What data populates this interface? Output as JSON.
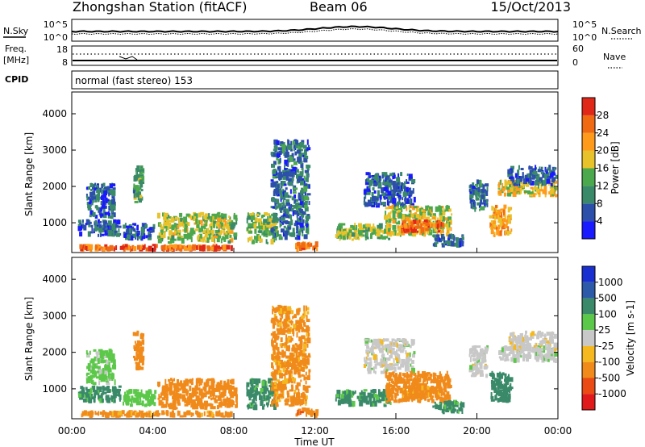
{
  "header": {
    "title": "Zhongshan Station (fitACF)",
    "beam": "Beam 06",
    "date": "15/Oct/2013"
  },
  "noise_panel": {
    "left_label": "N.Sky",
    "left_ticks": [
      "10^5",
      "10^0"
    ],
    "right_ticks": [
      "10^5",
      "10^0"
    ],
    "right_label": "N.Search"
  },
  "freq_panel": {
    "left_label_1": "Freq.",
    "left_label_2": "[MHz]",
    "left_ticks": [
      "18",
      "8"
    ],
    "right_ticks": [
      "60",
      "0"
    ],
    "right_label": "Nave"
  },
  "cpid": {
    "label": "CPID",
    "text": "normal (fast stereo) 153"
  },
  "time_axis": {
    "label": "Time UT",
    "ticks": [
      "00:00",
      "04:00",
      "08:00",
      "12:00",
      "16:00",
      "20:00",
      "00:00"
    ]
  },
  "range_axis": {
    "label": "Slant Range [km]",
    "ticks": [
      "1000",
      "2000",
      "3000",
      "4000"
    ]
  },
  "power_scale": {
    "label": "Power [dB]",
    "ticks": [
      "4",
      "8",
      "12",
      "16",
      "20",
      "24",
      "28"
    ],
    "colors": [
      "#1a1aff",
      "#2c4faa",
      "#3a8a6a",
      "#4ca84c",
      "#e8c22a",
      "#ff9a1a",
      "#f06a14",
      "#e02818"
    ]
  },
  "velocity_scale": {
    "label": "Velocity [m s-1]",
    "ticks": [
      "1000",
      "500",
      "100",
      "25",
      "-25",
      "-100",
      "-500",
      "-1000"
    ],
    "colors": [
      "#1a2fd0",
      "#2c5aa8",
      "#3a8a6a",
      "#5cc84a",
      "#c8c8c8",
      "#f5b81e",
      "#f08a1a",
      "#ea4a14",
      "#e01a1a"
    ]
  },
  "chart_data": [
    {
      "type": "heatmap",
      "title": "Power",
      "x_label": "Time UT",
      "y_label": "Slant Range [km]",
      "x_range_hours": [
        0,
        24
      ],
      "y_range_km": [
        180,
        4600
      ],
      "color_range_db": [
        0,
        32
      ],
      "patches": [
        {
          "t0": 0.3,
          "t1": 8.0,
          "r0": 200,
          "r1": 420,
          "v": 26
        },
        {
          "t0": 0.3,
          "t1": 2.5,
          "r0": 600,
          "r1": 1100,
          "v": 7
        },
        {
          "t0": 2.5,
          "t1": 4.2,
          "r0": 500,
          "r1": 1000,
          "v": 6
        },
        {
          "t0": 4.2,
          "t1": 8.2,
          "r0": 420,
          "r1": 1300,
          "v": 16
        },
        {
          "t0": 0.7,
          "t1": 2.2,
          "r0": 1100,
          "r1": 2100,
          "v": 7
        },
        {
          "t0": 3.0,
          "t1": 3.6,
          "r0": 1500,
          "r1": 2600,
          "v": 12
        },
        {
          "t0": 8.6,
          "t1": 10.2,
          "r0": 400,
          "r1": 1300,
          "v": 15
        },
        {
          "t0": 9.8,
          "t1": 11.8,
          "r0": 500,
          "r1": 3300,
          "v": 8
        },
        {
          "t0": 11.0,
          "t1": 12.2,
          "r0": 200,
          "r1": 500,
          "v": 25
        },
        {
          "t0": 13.0,
          "t1": 15.8,
          "r0": 500,
          "r1": 1000,
          "v": 15
        },
        {
          "t0": 14.4,
          "t1": 17.0,
          "r0": 1400,
          "r1": 2400,
          "v": 7
        },
        {
          "t0": 15.4,
          "t1": 18.8,
          "r0": 600,
          "r1": 1500,
          "v": 17
        },
        {
          "t0": 16.2,
          "t1": 18.4,
          "r0": 700,
          "r1": 1100,
          "v": 27
        },
        {
          "t0": 17.8,
          "t1": 19.4,
          "r0": 300,
          "r1": 700,
          "v": 8
        },
        {
          "t0": 19.6,
          "t1": 20.6,
          "r0": 1300,
          "r1": 2200,
          "v": 8
        },
        {
          "t0": 20.6,
          "t1": 21.8,
          "r0": 600,
          "r1": 1500,
          "v": 22
        },
        {
          "t0": 21.0,
          "t1": 24.0,
          "r0": 1700,
          "r1": 2200,
          "v": 18
        },
        {
          "t0": 21.5,
          "t1": 24.0,
          "r0": 2000,
          "r1": 2600,
          "v": 7
        }
      ]
    },
    {
      "type": "heatmap",
      "title": "Velocity",
      "x_label": "Time UT",
      "y_label": "Slant Range [km]",
      "x_range_hours": [
        0,
        24
      ],
      "y_range_km": [
        180,
        4600
      ],
      "patches": [
        {
          "t0": 0.3,
          "t1": 8.0,
          "r0": 200,
          "r1": 420,
          "v": -150
        },
        {
          "t0": 0.3,
          "t1": 2.5,
          "r0": 600,
          "r1": 1100,
          "v": 150
        },
        {
          "t0": 2.5,
          "t1": 4.2,
          "r0": 500,
          "r1": 1000,
          "v": 60
        },
        {
          "t0": 4.2,
          "t1": 8.2,
          "r0": 420,
          "r1": 1300,
          "v": -300
        },
        {
          "t0": 0.7,
          "t1": 2.2,
          "r0": 1100,
          "r1": 2100,
          "v": 40
        },
        {
          "t0": 3.0,
          "t1": 3.6,
          "r0": 1500,
          "r1": 2600,
          "v": -200
        },
        {
          "t0": 8.6,
          "t1": 10.2,
          "r0": 400,
          "r1": 1300,
          "v": 150
        },
        {
          "t0": 9.8,
          "t1": 11.8,
          "r0": 500,
          "r1": 3300,
          "v": -150
        },
        {
          "t0": 11.0,
          "t1": 12.2,
          "r0": 200,
          "r1": 500,
          "v": -400
        },
        {
          "t0": 13.0,
          "t1": 15.8,
          "r0": 500,
          "r1": 1000,
          "v": 150
        },
        {
          "t0": 14.4,
          "t1": 17.0,
          "r0": 1400,
          "r1": 2400,
          "v": 0
        },
        {
          "t0": 15.4,
          "t1": 18.8,
          "r0": 600,
          "r1": 1500,
          "v": -300
        },
        {
          "t0": 16.2,
          "t1": 18.4,
          "r0": 700,
          "r1": 1100,
          "v": -150
        },
        {
          "t0": 17.8,
          "t1": 19.4,
          "r0": 300,
          "r1": 700,
          "v": 150
        },
        {
          "t0": 19.6,
          "t1": 20.6,
          "r0": 1300,
          "r1": 2200,
          "v": 0
        },
        {
          "t0": 20.6,
          "t1": 21.8,
          "r0": 600,
          "r1": 1500,
          "v": 200
        },
        {
          "t0": 21.0,
          "t1": 24.0,
          "r0": 1700,
          "r1": 2200,
          "v": 5
        },
        {
          "t0": 21.5,
          "t1": 24.0,
          "r0": 2000,
          "r1": 2600,
          "v": -5
        }
      ]
    }
  ]
}
